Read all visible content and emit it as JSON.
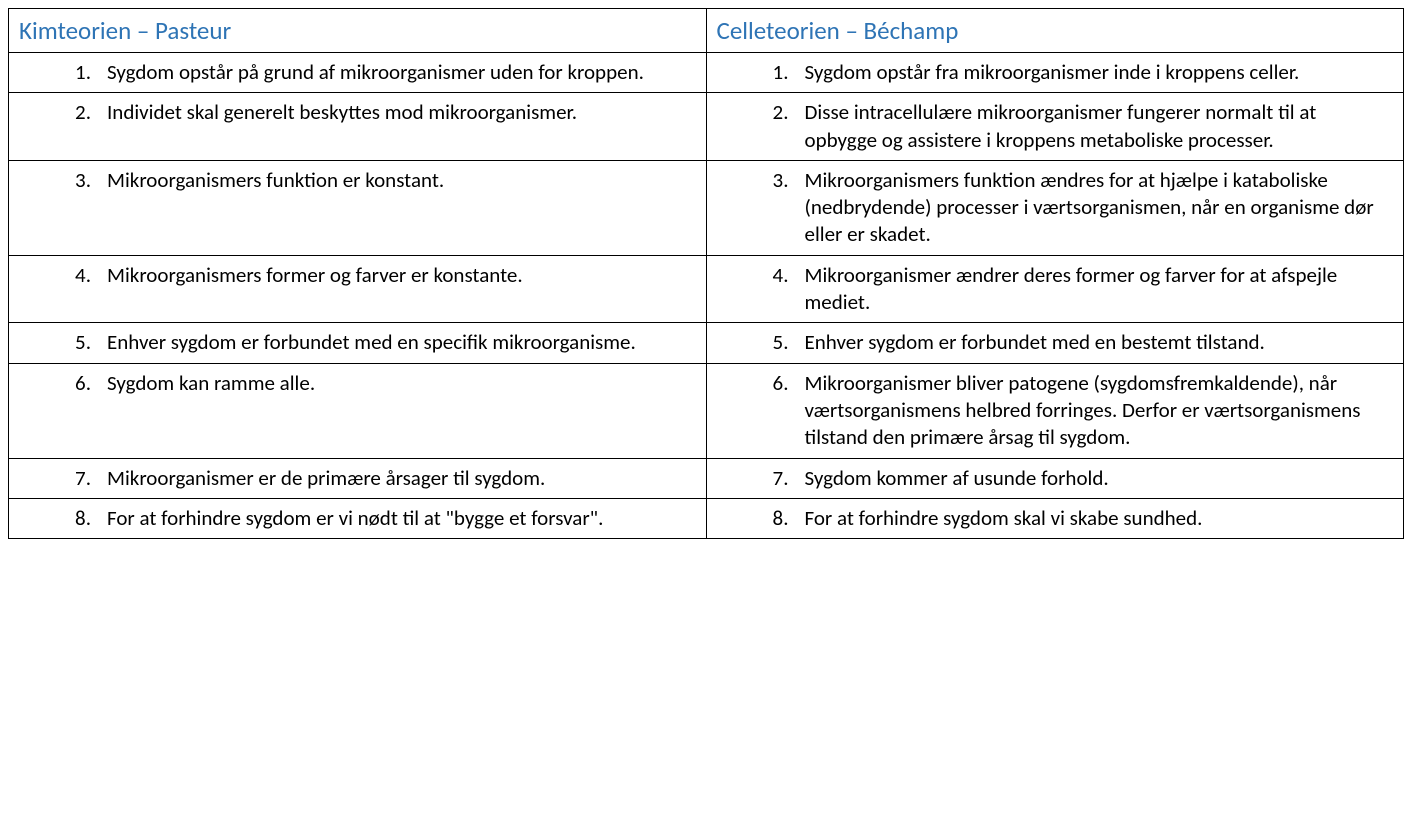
{
  "table": {
    "header_color": "#2e74b5",
    "text_color": "#000000",
    "border_color": "#000000",
    "background_color": "#ffffff",
    "font_family": "Calibri",
    "header_fontsize": 25,
    "body_fontsize": 21,
    "columns": [
      {
        "title": "Kimteorien – Pasteur"
      },
      {
        "title": "Celleteorien – Béchamp"
      }
    ],
    "rows": [
      {
        "left": {
          "n": "1.",
          "text": "Sygdom opstår på grund af mikroorganismer uden for kroppen."
        },
        "right": {
          "n": "1.",
          "text": "Sygdom opstår fra mikroorganismer inde i kroppens celler."
        }
      },
      {
        "left": {
          "n": "2.",
          "text": "Individet skal generelt beskyttes mod mikroorganismer."
        },
        "right": {
          "n": "2.",
          "text": " Disse intracellulære mikroorganismer fungerer normalt til at opbygge og assistere i kroppens metaboliske processer."
        }
      },
      {
        "left": {
          "n": "3.",
          "text": "Mikroorganismers funktion er konstant."
        },
        "right": {
          "n": "3.",
          "text": "Mikroorganismers funktion ændres for at hjælpe i kataboliske (nedbrydende) processer i værtsorganismen, når en organisme dør eller er skadet."
        }
      },
      {
        "left": {
          "n": "4.",
          "text": "Mikroorganismers former og farver er konstante."
        },
        "right": {
          "n": "4.",
          "text": "Mikroorganismer ændrer deres former og farver for at afspejle mediet."
        }
      },
      {
        "left": {
          "n": "5.",
          "text": "Enhver sygdom er forbundet med en specifik mikroorganisme."
        },
        "right": {
          "n": "5.",
          "text": "Enhver sygdom er forbundet med en bestemt tilstand."
        }
      },
      {
        "left": {
          "n": "6.",
          "text": "Sygdom kan ramme alle."
        },
        "right": {
          "n": "6.",
          "text": "Mikroorganismer bliver patogene (sygdomsfremkaldende), når værtsorganismens helbred forringes. Derfor er værtsorganismens tilstand den primære årsag til sygdom."
        }
      },
      {
        "left": {
          "n": "7.",
          "text": "Mikroorganismer er de primære årsager til sygdom."
        },
        "right": {
          "n": "7.",
          "text": "Sygdom kommer af usunde forhold."
        }
      },
      {
        "left": {
          "n": "8.",
          "text": "For at forhindre sygdom er vi nødt til at \"bygge et forsvar\"."
        },
        "right": {
          "n": "8.",
          "text": "For at forhindre sygdom skal vi skabe sundhed."
        }
      }
    ]
  }
}
